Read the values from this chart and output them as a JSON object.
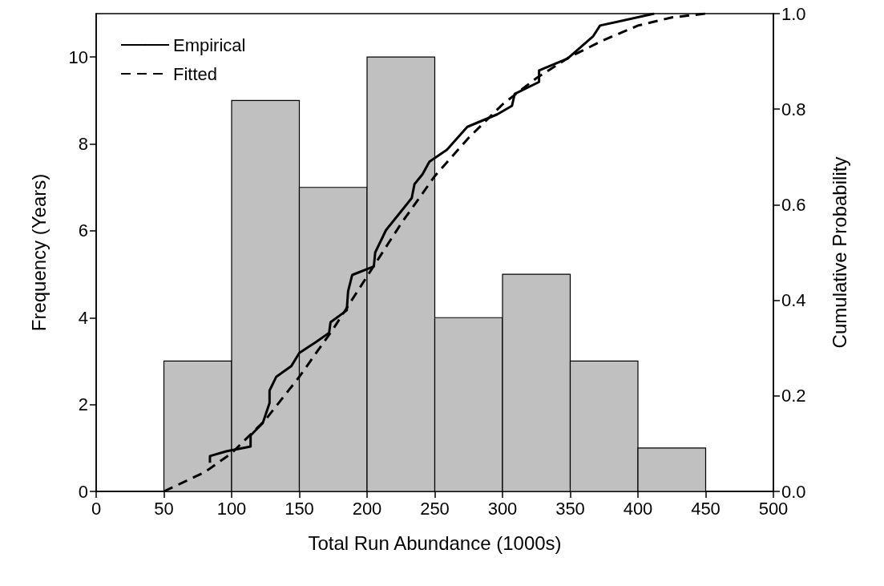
{
  "chart_data": {
    "type": "histogram",
    "xlabel": "Total Run Abundance (1000s)",
    "ylabel": "Frequency (Years)",
    "y2label": "Cumulative Probability",
    "bins": [
      50,
      100,
      150,
      200,
      250,
      300,
      350,
      400,
      450
    ],
    "values": [
      3,
      9,
      7,
      10,
      4,
      5,
      3,
      1
    ],
    "color": "#c0c0c0",
    "series": [
      {
        "name": "Empirical",
        "type": "line",
        "axis": "y2",
        "color": "#000000",
        "line_style": "solid",
        "x": [
          84,
          84,
          96,
          114,
          114,
          123,
          128,
          128,
          133,
          144,
          150,
          162,
          172,
          173,
          185,
          186,
          189,
          205,
          206,
          214,
          233,
          235,
          241,
          246,
          259,
          274,
          296,
          307,
          309,
          327,
          327,
          348,
          367,
          372,
          412
        ],
        "values": [
          0.06,
          0.074,
          0.084,
          0.094,
          0.117,
          0.143,
          0.185,
          0.211,
          0.24,
          0.262,
          0.29,
          0.312,
          0.332,
          0.354,
          0.379,
          0.419,
          0.453,
          0.471,
          0.5,
          0.547,
          0.614,
          0.643,
          0.664,
          0.69,
          0.715,
          0.763,
          0.789,
          0.807,
          0.832,
          0.857,
          0.881,
          0.906,
          0.953,
          0.975,
          1.0
        ]
      },
      {
        "name": "Fitted",
        "type": "line",
        "axis": "y2",
        "color": "#000000",
        "line_style": "dashed",
        "x": [
          50,
          80,
          100,
          125,
          150,
          175,
          200,
          225,
          250,
          275,
          300,
          325,
          350,
          375,
          400,
          425,
          450
        ],
        "values": [
          0,
          0.04,
          0.08,
          0.15,
          0.24,
          0.34,
          0.45,
          0.56,
          0.66,
          0.74,
          0.81,
          0.865,
          0.91,
          0.945,
          0.975,
          0.992,
          1.0
        ]
      }
    ],
    "xlim": [
      0,
      500
    ],
    "xticks": [
      0,
      50,
      100,
      150,
      200,
      250,
      300,
      350,
      400,
      450,
      500
    ],
    "ylim": [
      0,
      11
    ],
    "yticks": [
      0,
      2,
      4,
      6,
      8,
      10
    ],
    "y2lim": [
      0,
      1
    ],
    "y2ticks": [
      {
        "value": 0,
        "label": "0.0"
      },
      0.2,
      0.4,
      0.6,
      0.8,
      {
        "value": 1,
        "label": "1.0"
      }
    ],
    "legend": "top left",
    "grid": false,
    "marker": "none"
  }
}
